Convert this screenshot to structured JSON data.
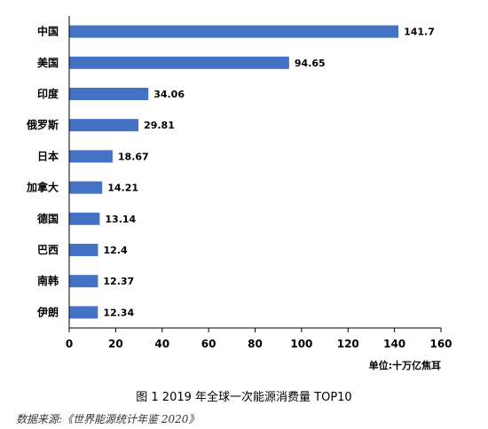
{
  "chart_data": {
    "type": "bar",
    "orientation": "horizontal",
    "categories": [
      "中国",
      "美国",
      "印度",
      "俄罗斯",
      "日本",
      "加拿大",
      "德国",
      "巴西",
      "南韩",
      "伊朗"
    ],
    "values": [
      141.7,
      94.65,
      34.06,
      29.81,
      18.67,
      14.21,
      13.14,
      12.4,
      12.37,
      12.34
    ],
    "value_labels": [
      "141.7",
      "94.65",
      "34.06",
      "29.81",
      "18.67",
      "14.21",
      "13.14",
      "12.4",
      "12.37",
      "12.34"
    ],
    "xlim": [
      0,
      160
    ],
    "x_ticks": [
      0,
      20,
      40,
      60,
      80,
      100,
      120,
      140,
      160
    ],
    "unit_label": "单位:十万亿焦耳",
    "bar_color": "#4472C4",
    "grid": false,
    "legend": "none"
  },
  "caption": "图 1 2019 年全球一次能源消费量 TOP10",
  "source": "数据来源:《世界能源统计年鉴 2020》"
}
